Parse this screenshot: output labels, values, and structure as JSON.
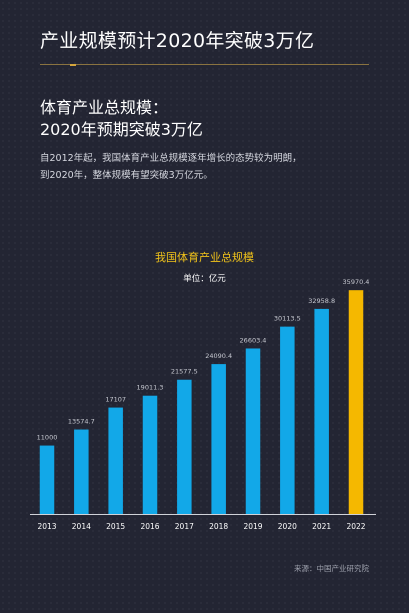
{
  "header": {
    "title": "产业规模预计2020年突破3万亿"
  },
  "section": {
    "title_line1": "体育产业总规模：",
    "title_line2": "2020年预期突破3万亿",
    "desc_line1": "自2012年起，我国体育产业总规模逐年增长的态势较为明朗，",
    "desc_line2": "到2020年，整体规模有望突破3万亿元。"
  },
  "chart_data": {
    "type": "bar",
    "title": "我国体育产业总规模",
    "unit": "单位：亿元",
    "categories": [
      "2013",
      "2014",
      "2015",
      "2016",
      "2017",
      "2018",
      "2019",
      "2020",
      "2021",
      "2022"
    ],
    "values": [
      11000,
      13574.7,
      17107,
      19011.3,
      21577.5,
      24090.4,
      26603.4,
      30113.5,
      32958.8,
      35970.4
    ],
    "value_labels": [
      "11000",
      "13574.7",
      "17107",
      "19011.3",
      "21577.5",
      "24090.4",
      "26603.4",
      "30113.5",
      "32958.8",
      "35970.4"
    ],
    "ylim": [
      0,
      36000
    ],
    "grid": false,
    "colors": {
      "bar": "#12a8e8",
      "highlight_bar": "#f5b800",
      "value_label": "#c8cad2",
      "axis": "#d0d2d8",
      "tick_label": "#ffffff"
    },
    "highlight_index": 9
  },
  "footer": {
    "source": "来源：中国产业研究院"
  }
}
